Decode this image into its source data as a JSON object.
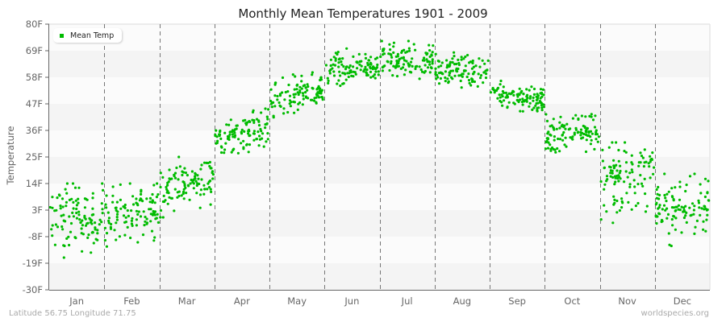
{
  "chart_data": {
    "type": "scatter",
    "title": "Monthly Mean Temperatures 1901 - 2009",
    "xlabel": "",
    "ylabel": "Temperature",
    "ylim": [
      -30,
      80
    ],
    "yticks": [
      "-30F",
      "-19F",
      "-8F",
      "3F",
      "14F",
      "25F",
      "36F",
      "47F",
      "58F",
      "69F",
      "80F"
    ],
    "ytick_values": [
      -30,
      -19,
      -8,
      3,
      14,
      25,
      36,
      47,
      58,
      69,
      80
    ],
    "categories": [
      "Jan",
      "Feb",
      "Mar",
      "Apr",
      "May",
      "Jun",
      "Jul",
      "Aug",
      "Sep",
      "Oct",
      "Nov",
      "Dec"
    ],
    "grid": {
      "horizontal_bands": true,
      "vertical_month_dividers": "dashed"
    },
    "legend": {
      "position": "top-left",
      "entries": [
        "Mean Temp"
      ]
    },
    "series": [
      {
        "name": "Mean Temp",
        "color": "#00bb00",
        "points_per_month": 109,
        "month_stats": [
          {
            "month": "Jan",
            "mean": 0,
            "min": -22,
            "max": 14,
            "trend": 3
          },
          {
            "month": "Feb",
            "mean": 2,
            "min": -16,
            "max": 14,
            "trend": 4
          },
          {
            "month": "Mar",
            "mean": 14,
            "min": 0,
            "max": 25,
            "trend": 8
          },
          {
            "month": "Apr",
            "mean": 35,
            "min": 25,
            "max": 46,
            "trend": 6
          },
          {
            "month": "May",
            "mean": 50,
            "min": 40,
            "max": 60,
            "trend": 6
          },
          {
            "month": "Jun",
            "mean": 62,
            "min": 53,
            "max": 70,
            "trend": 3
          },
          {
            "month": "Jul",
            "mean": 65,
            "min": 56,
            "max": 73,
            "trend": 0
          },
          {
            "month": "Aug",
            "mean": 61,
            "min": 53,
            "max": 69,
            "trend": -2
          },
          {
            "month": "Sep",
            "mean": 50,
            "min": 43,
            "max": 58,
            "trend": -3
          },
          {
            "month": "Oct",
            "mean": 35,
            "min": 22,
            "max": 44,
            "trend": 4
          },
          {
            "month": "Nov",
            "mean": 17,
            "min": -6,
            "max": 31,
            "trend": 2
          },
          {
            "month": "Dec",
            "mean": 4,
            "min": -14,
            "max": 18,
            "trend": 2
          }
        ]
      }
    ]
  },
  "footer": {
    "location": "Latitude 56.75 Longitude 71.75",
    "source": "worldspecies.org"
  }
}
